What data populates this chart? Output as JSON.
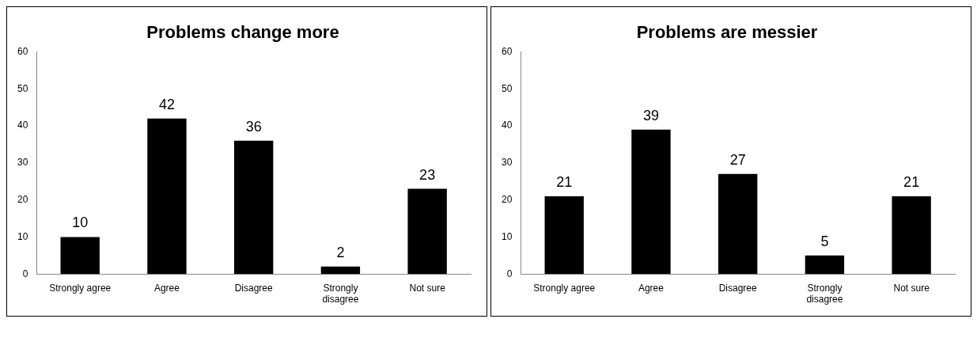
{
  "chart_data": [
    {
      "type": "bar",
      "title": "Problems change more",
      "categories": [
        "Strongly agree",
        "Agree",
        "Disagree",
        "Strongly disagree",
        "Not sure"
      ],
      "values": [
        10,
        42,
        36,
        2,
        23
      ],
      "color": "#000000",
      "ylim": [
        0,
        60
      ],
      "yticks": [
        0,
        10,
        20,
        30,
        40,
        50,
        60
      ],
      "grid": false,
      "legend": false,
      "data_labels": true
    },
    {
      "type": "bar",
      "title": "Problems are messier",
      "categories": [
        "Strongly agree",
        "Agree",
        "Disagree",
        "Strongly disagree",
        "Not sure"
      ],
      "values": [
        21,
        39,
        27,
        5,
        21
      ],
      "color": "#000000",
      "ylim": [
        0,
        60
      ],
      "yticks": [
        0,
        10,
        20,
        30,
        40,
        50,
        60
      ],
      "grid": false,
      "legend": false,
      "data_labels": true
    }
  ]
}
